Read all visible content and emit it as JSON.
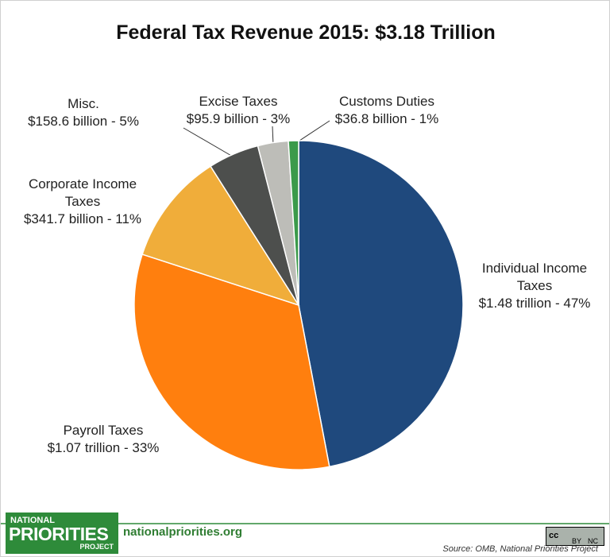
{
  "chart_data": {
    "type": "pie",
    "title": "Federal Tax Revenue 2015: $3.18 Trillion",
    "categories": [
      "Individual Income Taxes",
      "Payroll Taxes",
      "Corporate Income Taxes",
      "Misc.",
      "Excise Taxes",
      "Customs Duties"
    ],
    "values": [
      47,
      33,
      11,
      5,
      3,
      1
    ],
    "value_labels": [
      "$1.48 trillion - 47%",
      "$1.07 trillion - 33%",
      "$341.7 billion - 11%",
      "$158.6 billion - 5%",
      "$95.9 billion - 3%",
      "$36.8 billion - 1%"
    ],
    "colors": [
      "#1f497d",
      "#ff7f0e",
      "#f0ad3a",
      "#4d4f4d",
      "#bdbdb8",
      "#3b9a4a"
    ]
  },
  "footer": {
    "logo": [
      "NATIONAL",
      "PRIORITIES",
      "PROJECT"
    ],
    "url": "nationalpriorities.org",
    "license": [
      "cc",
      "BY",
      "NC"
    ],
    "source": "Source: OMB, National Priorities Project"
  }
}
